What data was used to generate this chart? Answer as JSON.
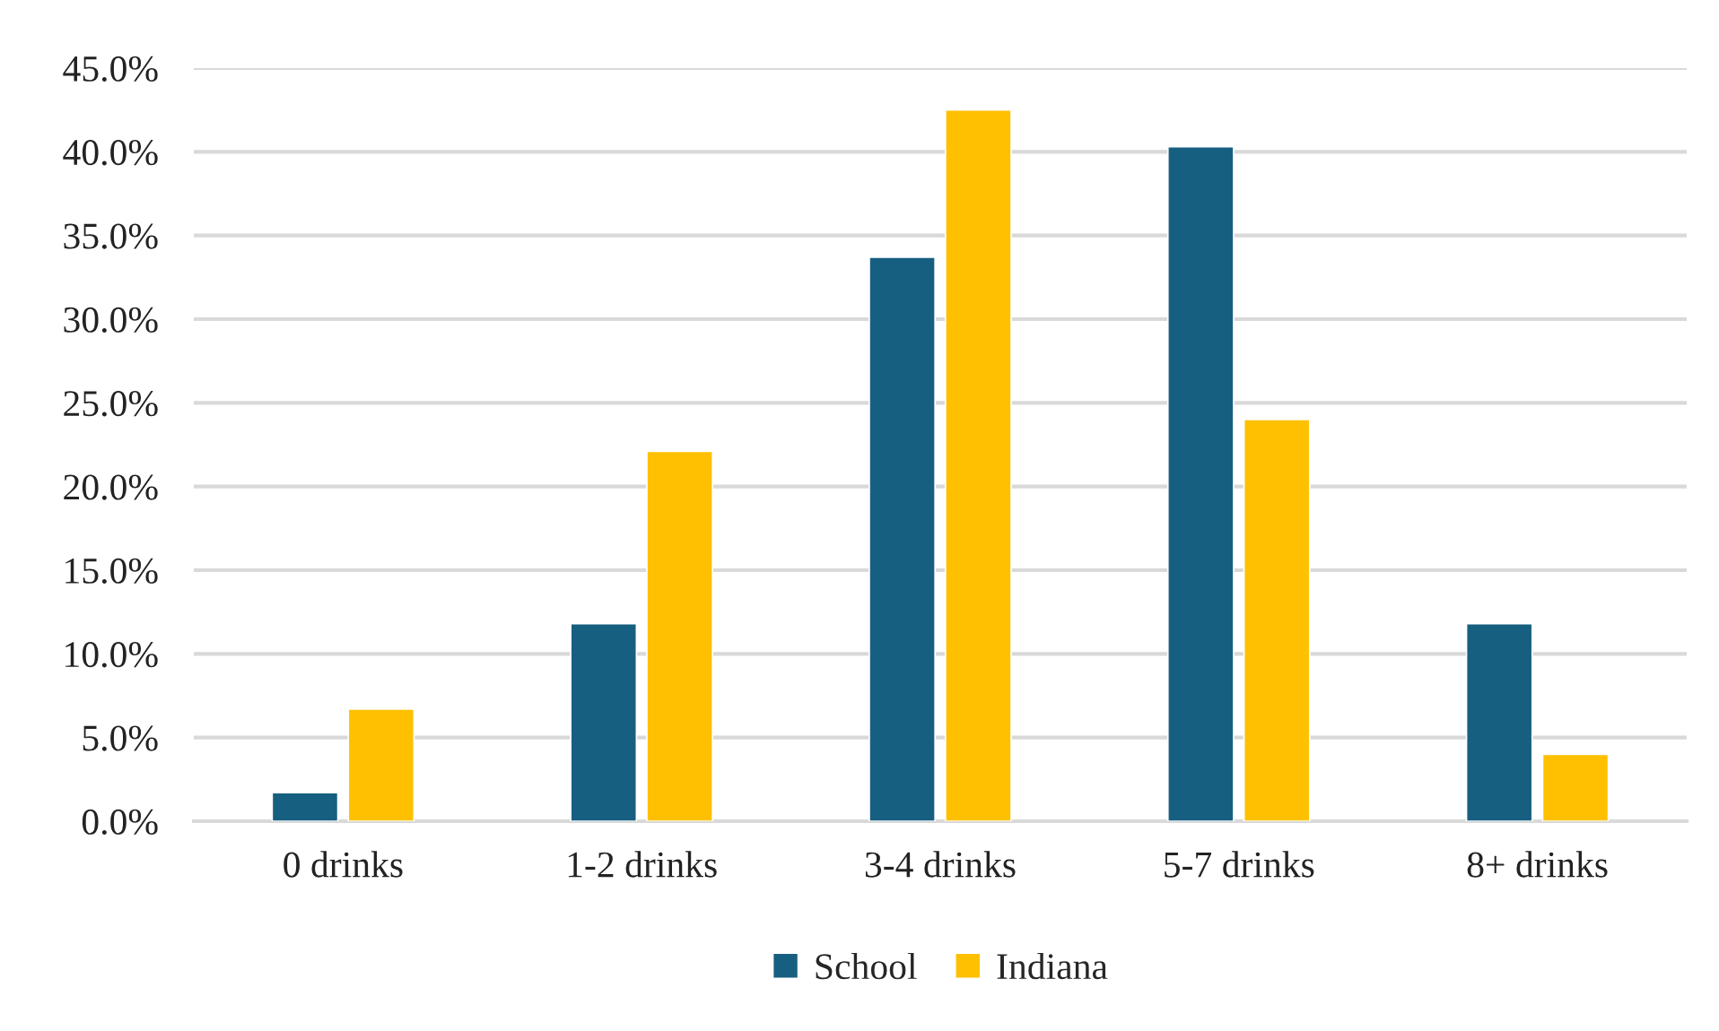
{
  "chart_data": {
    "type": "bar",
    "categories": [
      "0 drinks",
      "1-2 drinks",
      "3-4 drinks",
      "5-7 drinks",
      "8+ drinks"
    ],
    "series": [
      {
        "name": "School",
        "color": "#175f81",
        "values": [
          1.7,
          11.8,
          33.7,
          40.3,
          11.8
        ]
      },
      {
        "name": "Indiana",
        "color": "#fec000",
        "values": [
          6.7,
          22.1,
          42.5,
          24.0,
          4.0
        ]
      }
    ],
    "ylim": [
      0,
      45
    ],
    "yticks": [
      {
        "value": 0,
        "label": "0.0%"
      },
      {
        "value": 5,
        "label": "5.0%"
      },
      {
        "value": 10,
        "label": "10.0%"
      },
      {
        "value": 15,
        "label": "15.0%"
      },
      {
        "value": 20,
        "label": "20.0%"
      },
      {
        "value": 25,
        "label": "25.0%"
      },
      {
        "value": 30,
        "label": "30.0%"
      },
      {
        "value": 35,
        "label": "35.0%"
      },
      {
        "value": 40,
        "label": "40.0%"
      },
      {
        "value": 45,
        "label": "45.0%"
      }
    ],
    "grid": "y",
    "legend": "bottom"
  }
}
